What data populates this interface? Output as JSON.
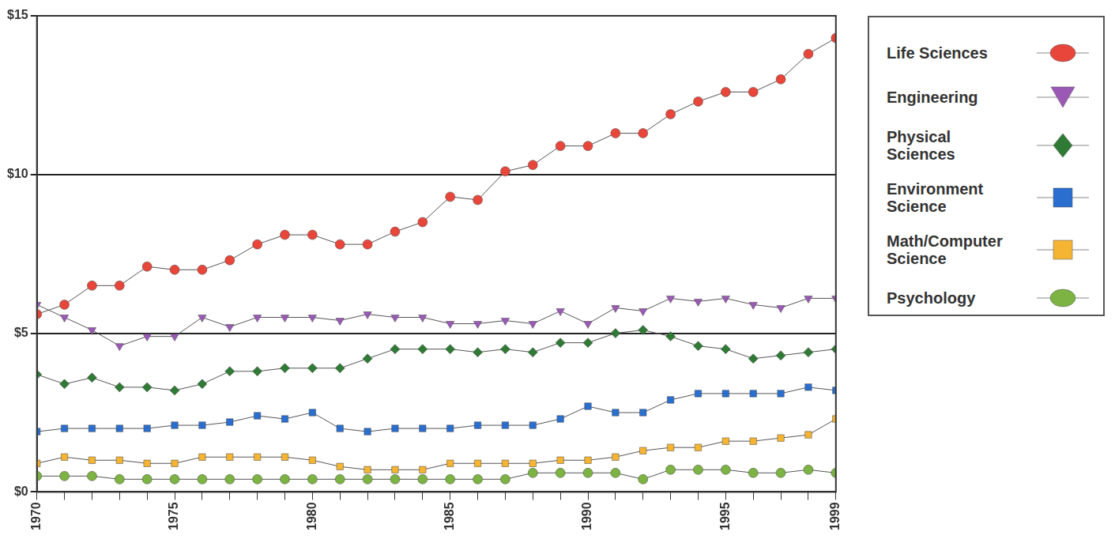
{
  "chart_data": {
    "type": "line",
    "categories": [
      "1970",
      null,
      null,
      null,
      null,
      "1975",
      null,
      null,
      null,
      null,
      "1980",
      null,
      null,
      null,
      null,
      "1985",
      null,
      null,
      null,
      null,
      "1990",
      null,
      null,
      null,
      null,
      "1995",
      null,
      null,
      null,
      "1999"
    ],
    "series": [
      {
        "name": "Life Sciences",
        "color": "#e8463a",
        "marker": "circle",
        "values": [
          5.6,
          5.9,
          6.5,
          6.5,
          7.1,
          7.0,
          7.0,
          7.3,
          7.8,
          8.1,
          8.1,
          7.8,
          7.8,
          8.2,
          8.5,
          9.3,
          9.2,
          10.1,
          10.3,
          10.9,
          10.9,
          11.3,
          11.3,
          11.9,
          12.3,
          12.6,
          12.6,
          13.0,
          13.8,
          14.3
        ]
      },
      {
        "name": "Engineering",
        "color": "#9b59b6",
        "marker": "triangle-down",
        "values": [
          5.9,
          5.5,
          5.1,
          4.6,
          4.9,
          4.9,
          5.5,
          5.2,
          5.5,
          5.5,
          5.5,
          5.4,
          5.6,
          5.5,
          5.5,
          5.3,
          5.3,
          5.4,
          5.3,
          5.7,
          5.3,
          5.8,
          5.7,
          6.1,
          6.0,
          6.1,
          5.9,
          5.8,
          6.1,
          6.1
        ]
      },
      {
        "name": "Physical Sciences",
        "color": "#2f7a35",
        "marker": "diamond",
        "values": [
          3.7,
          3.4,
          3.6,
          3.3,
          3.3,
          3.2,
          3.4,
          3.8,
          3.8,
          3.9,
          3.9,
          3.9,
          4.2,
          4.5,
          4.5,
          4.5,
          4.4,
          4.5,
          4.4,
          4.7,
          4.7,
          5.0,
          5.1,
          4.9,
          4.6,
          4.5,
          4.2,
          4.3,
          4.4,
          4.5
        ]
      },
      {
        "name": "Environment Science",
        "color": "#2a6fcf",
        "marker": "square",
        "values": [
          1.9,
          2.0,
          2.0,
          2.0,
          2.0,
          2.1,
          2.1,
          2.2,
          2.4,
          2.3,
          2.5,
          2.0,
          1.9,
          2.0,
          2.0,
          2.0,
          2.1,
          2.1,
          2.1,
          2.3,
          2.7,
          2.5,
          2.5,
          2.9,
          3.1,
          3.1,
          3.1,
          3.1,
          3.3,
          3.2
        ]
      },
      {
        "name": "Math/Computer Science",
        "color": "#f5b533",
        "marker": "square",
        "values": [
          0.9,
          1.1,
          1.0,
          1.0,
          0.9,
          0.9,
          1.1,
          1.1,
          1.1,
          1.1,
          1.0,
          0.8,
          0.7,
          0.7,
          0.7,
          0.9,
          0.9,
          0.9,
          0.9,
          1.0,
          1.0,
          1.1,
          1.3,
          1.4,
          1.4,
          1.6,
          1.6,
          1.7,
          1.8,
          2.3
        ]
      },
      {
        "name": "Psychology",
        "color": "#7cb342",
        "marker": "circle",
        "values": [
          0.5,
          0.5,
          0.5,
          0.4,
          0.4,
          0.4,
          0.4,
          0.4,
          0.4,
          0.4,
          0.4,
          0.4,
          0.4,
          0.4,
          0.4,
          0.4,
          0.4,
          0.4,
          0.6,
          0.6,
          0.6,
          0.6,
          0.4,
          0.7,
          0.7,
          0.7,
          0.6,
          0.6,
          0.7,
          0.6
        ]
      }
    ],
    "ylim": [
      0,
      15
    ],
    "yticks": [
      {
        "value": 0,
        "label": "$0"
      },
      {
        "value": 5,
        "label": "$5"
      },
      {
        "value": 10,
        "label": "$10"
      },
      {
        "value": 15,
        "label": "$15"
      }
    ],
    "grid": true,
    "legend": "right"
  }
}
